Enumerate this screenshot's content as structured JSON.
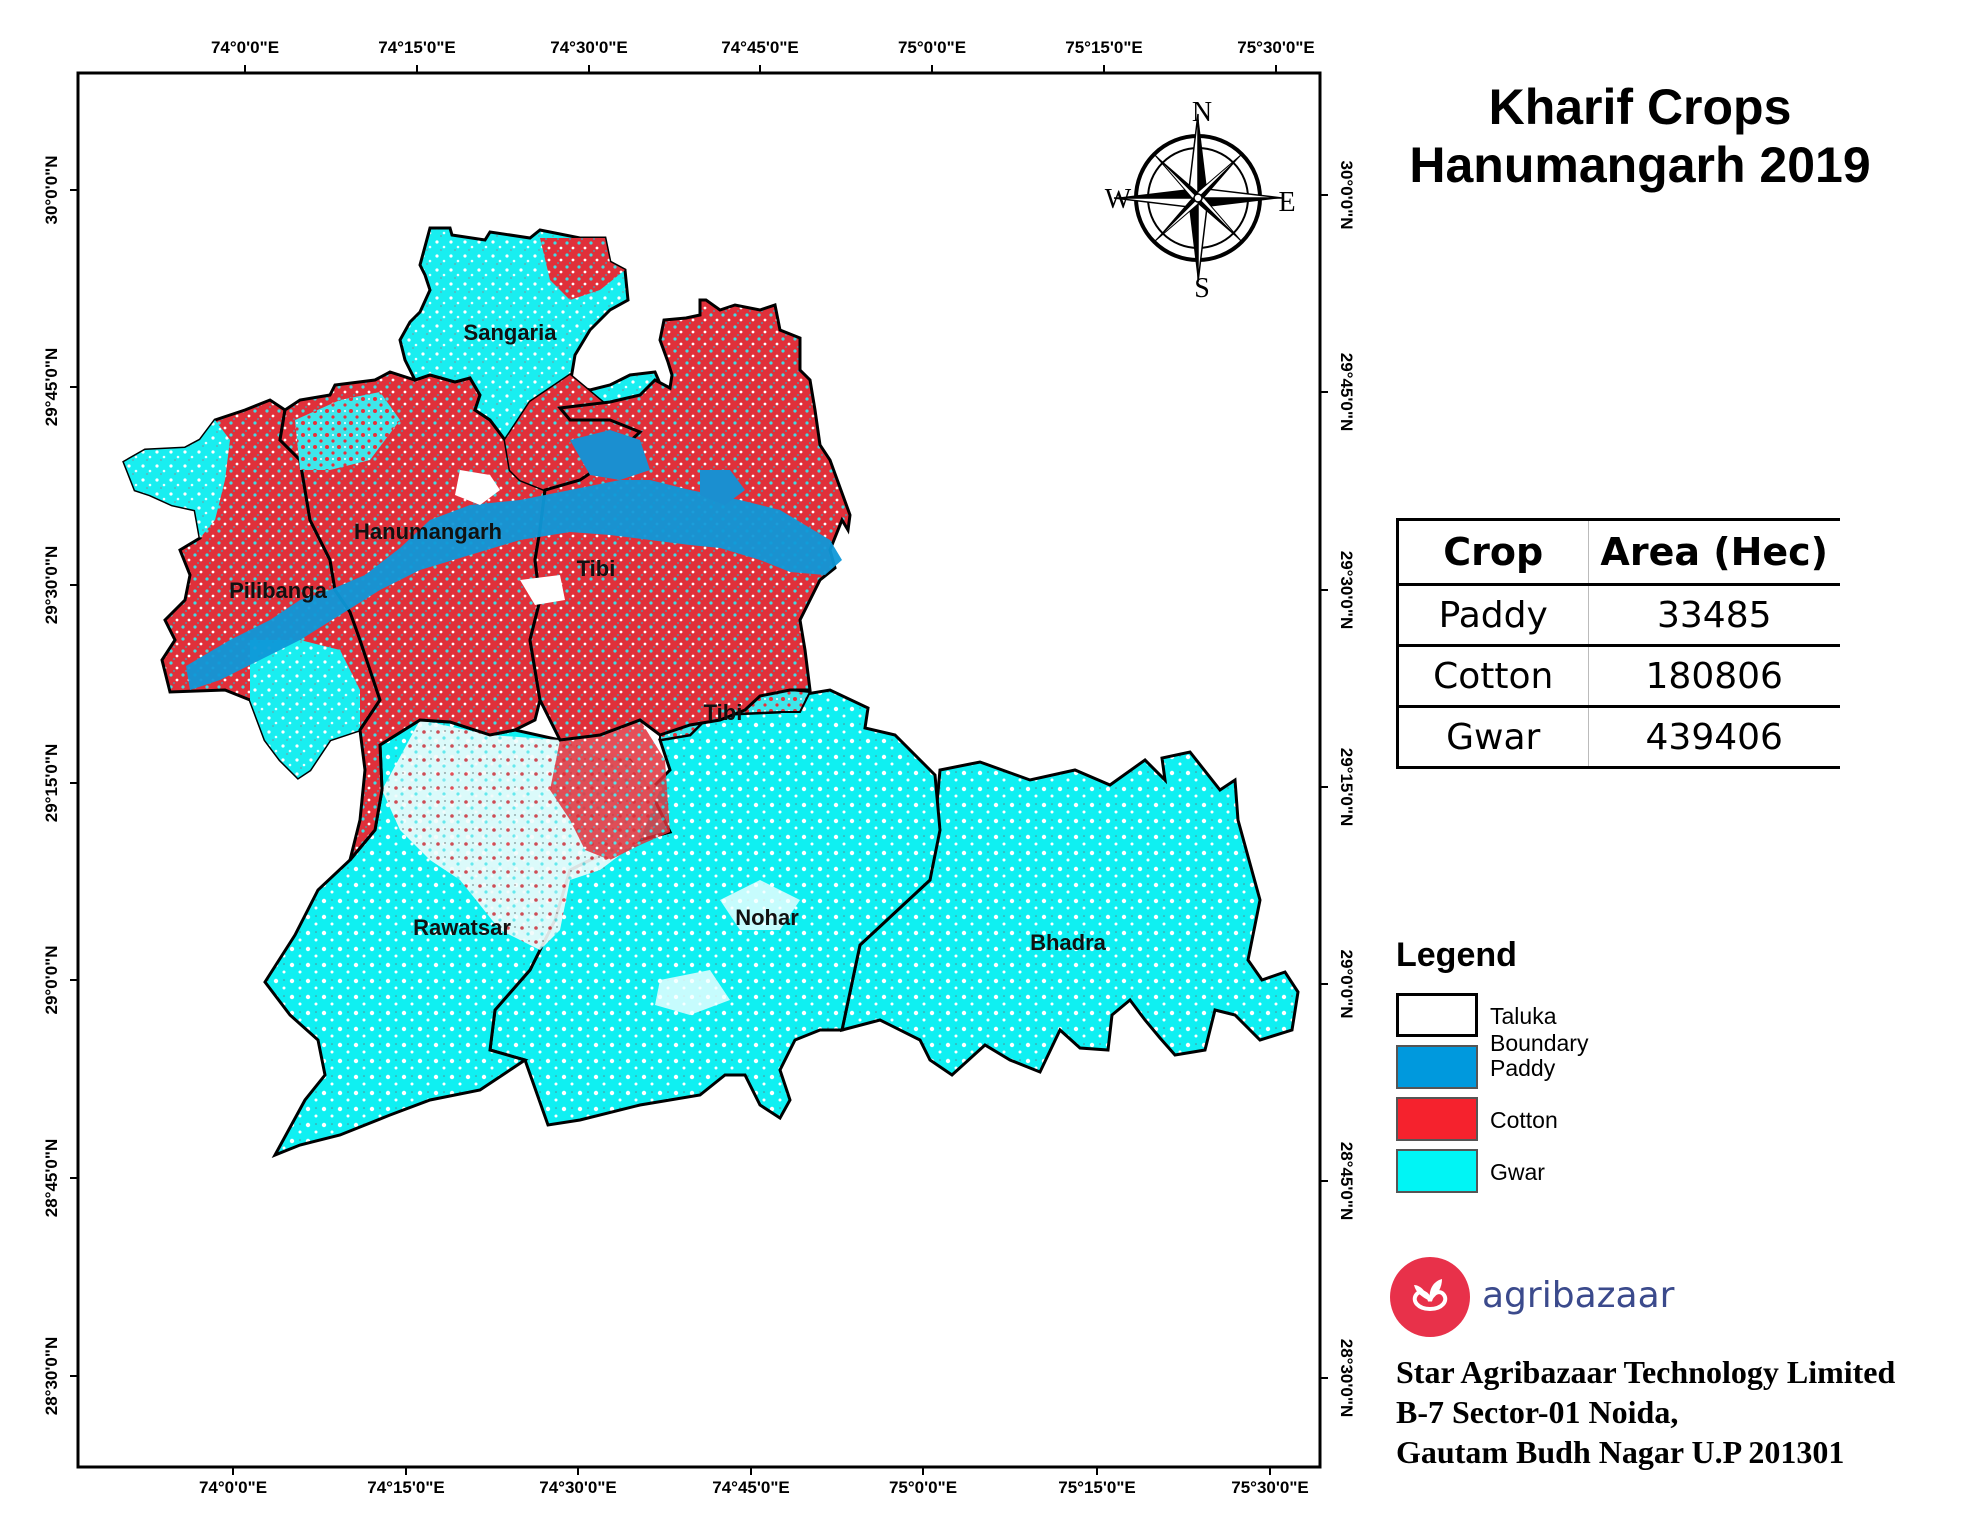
{
  "title": {
    "line1": "Kharif Crops",
    "line2": "Hanumangarh 2019"
  },
  "graticule": {
    "longitudes": [
      "74°0'0\"E",
      "74°15'0\"E",
      "74°30'0\"E",
      "74°45'0\"E",
      "75°0'0\"E",
      "75°15'0\"E",
      "75°30'0\"E"
    ],
    "latitudes": [
      "30°0'0\"N",
      "29°45'0\"N",
      "29°30'0\"N",
      "29°15'0\"N",
      "29°0'0\"N",
      "28°45'0\"N",
      "28°30'0\"N"
    ]
  },
  "compass": {
    "north": "N",
    "south": "S",
    "east": "E",
    "west": "W"
  },
  "talukas": [
    {
      "name": "Sangaria"
    },
    {
      "name": "Hanumangarh"
    },
    {
      "name": "Pilibanga"
    },
    {
      "name": "Tibi"
    },
    {
      "name": "Tibi"
    },
    {
      "name": "Rawatsar"
    },
    {
      "name": "Nohar"
    },
    {
      "name": "Bhadra"
    }
  ],
  "crop_table": {
    "header_crop": "Crop",
    "header_area": "Area (Hec)",
    "rows": [
      {
        "crop": "Paddy",
        "area": "33485"
      },
      {
        "crop": "Cotton",
        "area": "180806"
      },
      {
        "crop": "Gwar",
        "area": "439406"
      }
    ]
  },
  "legend": {
    "title": "Legend",
    "items": [
      {
        "label": "Taluka Boundary",
        "color": "#ffffff"
      },
      {
        "label": "Paddy",
        "color": "#0099dd"
      },
      {
        "label": "Cotton",
        "color": "#f5222d"
      },
      {
        "label": "Gwar",
        "color": "#00f5f5"
      }
    ]
  },
  "brand": {
    "name": "agribazaar",
    "color": "#3b4a8c",
    "logo_color": "#e8314a"
  },
  "address": {
    "line1": "Star Agribazaar Technology Limited",
    "line2": "B-7 Sector-01 Noida,",
    "line3": "Gautam Budh Nagar U.P 201301"
  }
}
